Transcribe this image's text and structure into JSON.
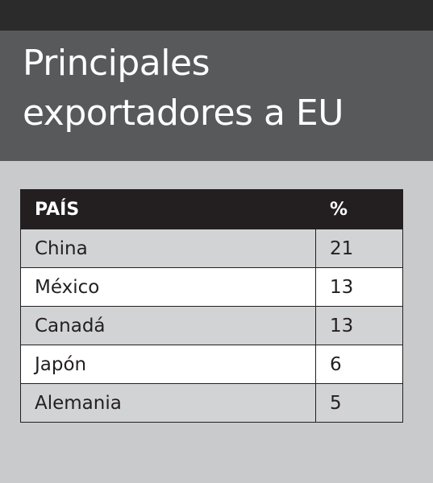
{
  "header": {
    "title_lines": [
      "Principales",
      "exportadores a EU"
    ]
  },
  "table": {
    "columns": [
      "PAÍS",
      "%"
    ],
    "rows": [
      [
        "China",
        21
      ],
      [
        "México",
        13
      ],
      [
        "Canadá",
        13
      ],
      [
        "Japón",
        6
      ],
      [
        "Alemania",
        5
      ]
    ]
  }
}
